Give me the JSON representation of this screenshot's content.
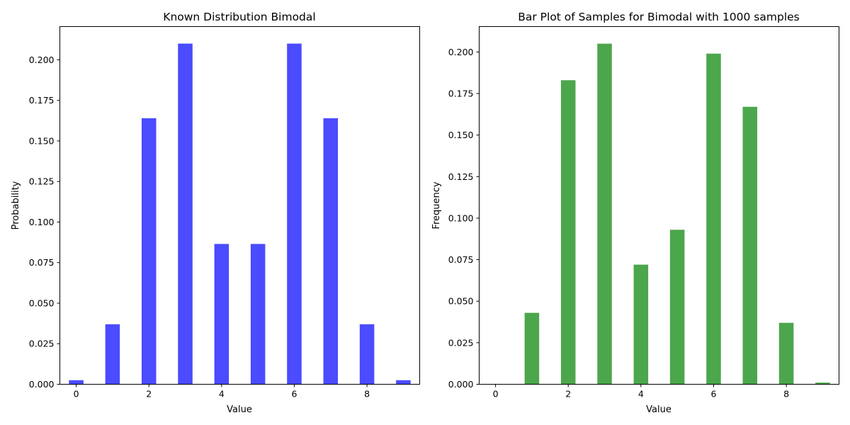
{
  "chart_data": [
    {
      "type": "bar",
      "title": "Known Distribution Bimodal",
      "xlabel": "Value",
      "ylabel": "Probability",
      "x": [
        0,
        1,
        2,
        3,
        4,
        5,
        6,
        7,
        8,
        9
      ],
      "values": [
        0.0025,
        0.037,
        0.164,
        0.21,
        0.0865,
        0.0865,
        0.21,
        0.164,
        0.037,
        0.0025
      ],
      "color": "#4b4bff",
      "xlim": [
        -0.45,
        9.45
      ],
      "ylim": [
        0,
        0.2205
      ],
      "xticks": [
        0,
        2,
        4,
        6,
        8
      ],
      "yticks": [
        0.0,
        0.025,
        0.05,
        0.075,
        0.1,
        0.125,
        0.15,
        0.175,
        0.2
      ],
      "ytick_labels": [
        "0.000",
        "0.025",
        "0.050",
        "0.075",
        "0.100",
        "0.125",
        "0.150",
        "0.175",
        "0.200"
      ],
      "grid": false
    },
    {
      "type": "bar",
      "title": "Bar Plot of Samples for Bimodal with 1000 samples",
      "xlabel": "Value",
      "ylabel": "Frequency",
      "x": [
        0,
        1,
        2,
        3,
        4,
        5,
        6,
        7,
        8,
        9
      ],
      "values": [
        0.0,
        0.043,
        0.183,
        0.205,
        0.072,
        0.093,
        0.199,
        0.167,
        0.037,
        0.001
      ],
      "color": "#4ca64c",
      "xlim": [
        -0.45,
        9.45
      ],
      "ylim": [
        0,
        0.2153
      ],
      "xticks": [
        0,
        2,
        4,
        6,
        8
      ],
      "yticks": [
        0.0,
        0.025,
        0.05,
        0.075,
        0.1,
        0.125,
        0.15,
        0.175,
        0.2
      ],
      "ytick_labels": [
        "0.000",
        "0.025",
        "0.050",
        "0.075",
        "0.100",
        "0.125",
        "0.150",
        "0.175",
        "0.200"
      ],
      "grid": false
    }
  ]
}
